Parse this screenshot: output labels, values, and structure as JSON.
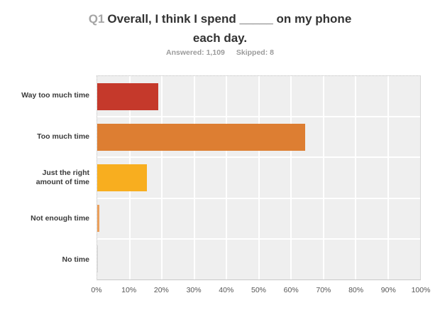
{
  "header": {
    "question_number": "Q1",
    "title": "Overall, I think I spend _____ on my phone each day.",
    "answered": "Answered: 1,109",
    "skipped": "Skipped: 8"
  },
  "chart_data": {
    "type": "bar",
    "orientation": "horizontal",
    "title": "Q1 Overall, I think I spend _____ on my phone each day.",
    "subtitle": "Answered: 1,109  Skipped: 8",
    "categories": [
      "Way too much time",
      "Too much time",
      "Just the right amount of time",
      "Not enough time",
      "No time"
    ],
    "values": [
      19,
      64.5,
      15.3,
      0.6,
      0.2
    ],
    "unit": "%",
    "colors": [
      "#c5392b",
      "#dd7e32",
      "#f8ae1f",
      "#eba05c",
      "#d6d6d6"
    ],
    "x_ticks": [
      "0%",
      "10%",
      "20%",
      "30%",
      "40%",
      "50%",
      "60%",
      "70%",
      "80%",
      "90%",
      "100%"
    ],
    "xlim": [
      0,
      100
    ],
    "grid": "vertical-white-gridlines",
    "plot_background": "#efefef",
    "legend": "none"
  }
}
